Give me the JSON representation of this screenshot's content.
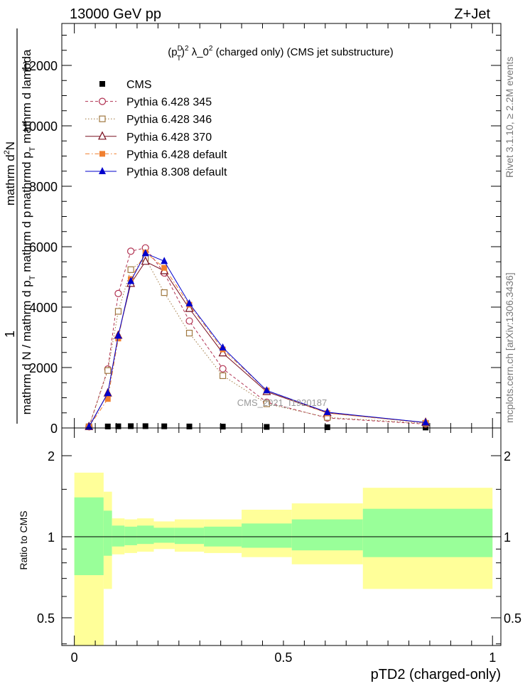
{
  "header": {
    "energy_label": "13000 GeV pp",
    "process_label": "Z+Jet"
  },
  "side_labels": {
    "rivet": "Rivet 3.1.10, ≥ 2.2M events",
    "mcplots": "mcplots.cern.ch [arXiv:1306.3436]"
  },
  "chart_data": [
    {
      "type": "line",
      "title_parts": {
        "p": "(p",
        "sup_d": "D",
        "sub_t": "T",
        "close": ")",
        "sup_2": "2",
        "rest": " λ_0",
        "sup_2b": "2",
        "tail": " (charged only) (CMS jet substructure)"
      },
      "ylabel_parts": {
        "one": "1",
        "denominator": "mathrm d N / mathrm d p",
        "denominator_sub": "T",
        "denominator_tail": " mathrm d p",
        "numerator_line1": "mathrm d",
        "numerator_sup": "2",
        "numerator_n": "N",
        "numerator_line2": "mathrmd p",
        "numerator_line2_sub": "T",
        "numerator_line2_tail": " mathrm d lambda"
      },
      "xlim": [
        -0.03,
        1.02
      ],
      "ylim": [
        0,
        13000
      ],
      "yticks": [
        0,
        2000,
        4000,
        6000,
        8000,
        10000,
        12000
      ],
      "ytick_labels": [
        "0",
        "2000",
        "4000",
        "6000",
        "8000",
        "10000",
        "12000"
      ],
      "watermark": "CMS_2021_I1920187",
      "legend_position": "top-left",
      "series": [
        {
          "name": "CMS",
          "marker": "filled-square",
          "color": "#000000",
          "line": "none",
          "x": [
            0.035,
            0.08,
            0.105,
            0.135,
            0.17,
            0.215,
            0.275,
            0.355,
            0.46,
            0.605,
            0.84
          ],
          "y": [
            40,
            50,
            55,
            60,
            60,
            55,
            50,
            45,
            35,
            25,
            15
          ]
        },
        {
          "name": "Pythia 6.428 345",
          "marker": "open-circle",
          "color": "#b03050",
          "line": "dashed",
          "x": [
            0.035,
            0.08,
            0.105,
            0.135,
            0.17,
            0.215,
            0.275,
            0.355,
            0.46,
            0.605,
            0.84
          ],
          "y": [
            40,
            1950,
            4450,
            5850,
            5960,
            5130,
            3540,
            1960,
            850,
            330,
            130
          ]
        },
        {
          "name": "Pythia 6.428 346",
          "marker": "open-square",
          "color": "#a07840",
          "line": "dotted",
          "x": [
            0.035,
            0.08,
            0.105,
            0.135,
            0.17,
            0.215,
            0.275,
            0.355,
            0.46,
            0.605,
            0.84
          ],
          "y": [
            40,
            1900,
            3860,
            5240,
            5610,
            4480,
            3140,
            1730,
            800,
            350,
            150
          ]
        },
        {
          "name": "Pythia 6.428 370",
          "marker": "open-triangle",
          "color": "#7a1020",
          "line": "solid",
          "x": [
            0.035,
            0.08,
            0.105,
            0.135,
            0.17,
            0.215,
            0.275,
            0.355,
            0.46,
            0.605,
            0.84
          ],
          "y": [
            40,
            1150,
            3060,
            4780,
            5510,
            5200,
            3950,
            2480,
            1200,
            500,
            180
          ]
        },
        {
          "name": "Pythia 6.428 default",
          "marker": "filled-square",
          "color": "#f08030",
          "line": "dashdot",
          "x": [
            0.035,
            0.08,
            0.105,
            0.135,
            0.17,
            0.215,
            0.275,
            0.355,
            0.46,
            0.605,
            0.84
          ],
          "y": [
            40,
            960,
            2960,
            4930,
            5810,
            5300,
            4080,
            2600,
            1240,
            490,
            170
          ]
        },
        {
          "name": "Pythia 8.308 default",
          "marker": "filled-triangle",
          "color": "#0000cc",
          "line": "solid",
          "x": [
            0.035,
            0.08,
            0.105,
            0.135,
            0.17,
            0.215,
            0.275,
            0.355,
            0.46,
            0.605,
            0.84
          ],
          "y": [
            40,
            1150,
            3050,
            4860,
            5780,
            5520,
            4120,
            2660,
            1240,
            520,
            180
          ]
        }
      ]
    },
    {
      "type": "area",
      "ylabel": "Ratio to CMS",
      "xlabel": "pTD2 (charged-only)",
      "xlim": [
        -0.03,
        1.02
      ],
      "ylim": [
        0.35,
        2.3
      ],
      "yticks": [
        0.5,
        1,
        2
      ],
      "ytick_labels": [
        "0.5",
        "1",
        "2"
      ],
      "xticks": [
        0,
        0.5,
        1
      ],
      "xtick_labels": [
        "0",
        "0.5",
        "1"
      ],
      "reference_line": 1,
      "bins": [
        {
          "x0": 0.0,
          "x1": 0.07,
          "inner": [
            0.72,
            1.4
          ],
          "outer": [
            0.37,
            1.73
          ]
        },
        {
          "x0": 0.07,
          "x1": 0.09,
          "inner": [
            0.85,
            1.25
          ],
          "outer": [
            0.64,
            1.47
          ]
        },
        {
          "x0": 0.09,
          "x1": 0.12,
          "inner": [
            0.92,
            1.1
          ],
          "outer": [
            0.86,
            1.17
          ]
        },
        {
          "x0": 0.12,
          "x1": 0.15,
          "inner": [
            0.93,
            1.09
          ],
          "outer": [
            0.87,
            1.16
          ]
        },
        {
          "x0": 0.15,
          "x1": 0.19,
          "inner": [
            0.94,
            1.1
          ],
          "outer": [
            0.88,
            1.17
          ]
        },
        {
          "x0": 0.19,
          "x1": 0.24,
          "inner": [
            0.95,
            1.08
          ],
          "outer": [
            0.9,
            1.14
          ]
        },
        {
          "x0": 0.24,
          "x1": 0.31,
          "inner": [
            0.94,
            1.08
          ],
          "outer": [
            0.88,
            1.16
          ]
        },
        {
          "x0": 0.31,
          "x1": 0.4,
          "inner": [
            0.92,
            1.09
          ],
          "outer": [
            0.87,
            1.16
          ]
        },
        {
          "x0": 0.4,
          "x1": 0.52,
          "inner": [
            0.91,
            1.12
          ],
          "outer": [
            0.84,
            1.26
          ]
        },
        {
          "x0": 0.52,
          "x1": 0.69,
          "inner": [
            0.89,
            1.16
          ],
          "outer": [
            0.79,
            1.33
          ]
        },
        {
          "x0": 0.69,
          "x1": 1.0,
          "inner": [
            0.84,
            1.27
          ],
          "outer": [
            0.64,
            1.52
          ]
        }
      ],
      "colors": {
        "inner": "#99ff99",
        "outer": "#ffff99"
      }
    }
  ]
}
